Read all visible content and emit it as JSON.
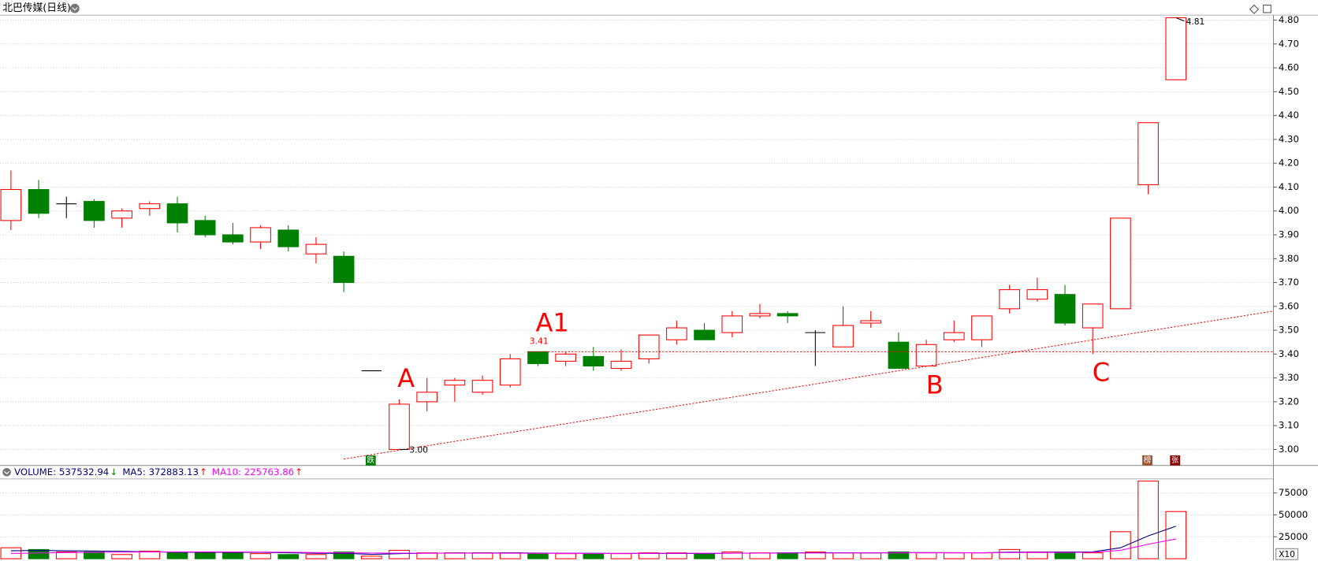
{
  "chart_data": {
    "type": "candlestick",
    "title": "北巴传媒(日线)",
    "up_color": "#ff0000",
    "down_color": "#008000",
    "flat_color": "#000000",
    "open": [
      3.96,
      4.09,
      4.03,
      4.04,
      3.97,
      4.01,
      4.03,
      3.96,
      3.9,
      3.87,
      3.92,
      3.82,
      3.81,
      3.33,
      3.0,
      3.2,
      3.27,
      3.24,
      3.27,
      3.41,
      3.37,
      3.39,
      3.34,
      3.38,
      3.46,
      3.5,
      3.49,
      3.56,
      3.57,
      3.49,
      3.43,
      3.53,
      3.45,
      3.35,
      3.46,
      3.46,
      3.59,
      3.63,
      3.65,
      3.51,
      3.59,
      4.11,
      4.55
    ],
    "high": [
      4.17,
      4.13,
      4.06,
      4.05,
      4.01,
      4.04,
      4.06,
      3.98,
      3.95,
      3.94,
      3.94,
      3.89,
      3.83,
      3.33,
      3.21,
      3.3,
      3.3,
      3.31,
      3.4,
      3.41,
      3.41,
      3.43,
      3.42,
      3.48,
      3.54,
      3.53,
      3.58,
      3.61,
      3.58,
      3.5,
      3.6,
      3.58,
      3.49,
      3.46,
      3.54,
      3.56,
      3.69,
      3.72,
      3.69,
      3.61,
      3.97,
      4.37,
      4.81
    ],
    "low": [
      3.92,
      3.97,
      3.97,
      3.93,
      3.93,
      3.98,
      3.91,
      3.89,
      3.86,
      3.84,
      3.83,
      3.78,
      3.66,
      3.33,
      3.0,
      3.16,
      3.2,
      3.23,
      3.26,
      3.35,
      3.35,
      3.33,
      3.33,
      3.36,
      3.44,
      3.46,
      3.47,
      3.55,
      3.53,
      3.35,
      3.43,
      3.51,
      3.34,
      3.35,
      3.45,
      3.43,
      3.57,
      3.62,
      3.52,
      3.4,
      3.59,
      4.07,
      4.55
    ],
    "close": [
      4.09,
      3.99,
      4.03,
      3.96,
      4.0,
      4.03,
      3.95,
      3.9,
      3.87,
      3.93,
      3.85,
      3.86,
      3.7,
      3.33,
      3.19,
      3.24,
      3.29,
      3.29,
      3.38,
      3.36,
      3.4,
      3.35,
      3.37,
      3.48,
      3.51,
      3.46,
      3.56,
      3.57,
      3.56,
      3.49,
      3.52,
      3.54,
      3.34,
      3.44,
      3.49,
      3.56,
      3.67,
      3.67,
      3.53,
      3.61,
      3.97,
      4.37,
      4.81
    ],
    "ylim": [
      2.933,
      4.821
    ],
    "yticks": [
      {
        "value": 3,
        "label": "3.00"
      },
      {
        "value": 3.1,
        "label": "3.10"
      },
      {
        "value": 3.2,
        "label": "3.20"
      },
      {
        "value": 3.3,
        "label": "3.30"
      },
      {
        "value": 3.4,
        "label": "3.40"
      },
      {
        "value": 3.5,
        "label": "3.50"
      },
      {
        "value": 3.6,
        "label": "3.60"
      },
      {
        "value": 3.7,
        "label": "3.70"
      },
      {
        "value": 3.8,
        "label": "3.80"
      },
      {
        "value": 3.9,
        "label": "3.90"
      },
      {
        "value": 4,
        "label": "4.00"
      },
      {
        "value": 4.1,
        "label": "4.10"
      },
      {
        "value": 4.2,
        "label": "4.20"
      },
      {
        "value": 4.3,
        "label": "4.30"
      },
      {
        "value": 4.4,
        "label": "4.40"
      },
      {
        "value": 4.5,
        "label": "4.50"
      },
      {
        "value": 4.6,
        "label": "4.60"
      },
      {
        "value": 4.7,
        "label": "4.70"
      },
      {
        "value": 4.8,
        "label": "4.80"
      }
    ],
    "grid": true,
    "reference_line": 3.41,
    "trendline": {
      "x": [
        12,
        45.5
      ],
      "y": [
        2.96,
        3.58
      ]
    },
    "high_marker": 4.81,
    "low_marker": {
      "value": 3,
      "label": "3.00"
    },
    "annotations": [
      "A",
      "A1",
      "B",
      "C"
    ],
    "badges": [
      "跌",
      "榜",
      "张"
    ],
    "volume": {
      "header": [
        {
          "text": "VOLUME: 537532.94",
          "arrow": "↓",
          "color": "#000080",
          "arrow_color": "#008000"
        },
        {
          "text": "MA5: 372883.13",
          "arrow": "↑",
          "color": "#000080",
          "arrow_color": "#ff0000"
        },
        {
          "text": "MA10: 225763.86",
          "arrow": "↑",
          "color": "#ff00ff",
          "arrow_color": "#ff0000"
        }
      ],
      "values": [
        12500,
        10500,
        7700,
        7700,
        4800,
        8600,
        7700,
        7700,
        7700,
        5800,
        4800,
        4800,
        7700,
        2900,
        9600,
        6700,
        6700,
        6700,
        6700,
        5800,
        5800,
        5800,
        5800,
        6700,
        6700,
        5800,
        7700,
        6700,
        6700,
        7700,
        6700,
        6700,
        7700,
        6700,
        6700,
        6700,
        10500,
        7700,
        7700,
        6700,
        30800,
        88500,
        53800
      ],
      "ma5": [
        9000,
        9500,
        9000,
        8800,
        8500,
        7800,
        7500,
        7300,
        7200,
        7300,
        6800,
        6200,
        6200,
        5000,
        5800,
        6300,
        6500,
        6500,
        6700,
        6500,
        6300,
        6200,
        6000,
        6000,
        6000,
        6000,
        6300,
        6400,
        6700,
        6800,
        6800,
        6700,
        7000,
        7000,
        6900,
        6800,
        7500,
        7500,
        7700,
        7800,
        12500,
        26000,
        37000
      ],
      "ma10": [
        6000,
        6500,
        7000,
        7300,
        7500,
        7700,
        7800,
        7800,
        7700,
        7600,
        7400,
        7000,
        6800,
        6500,
        6400,
        6300,
        6300,
        6300,
        6300,
        6200,
        6100,
        6100,
        6100,
        6200,
        6300,
        6300,
        6300,
        6400,
        6500,
        6500,
        6600,
        6600,
        6700,
        6800,
        6800,
        6800,
        7000,
        7100,
        7200,
        7300,
        9600,
        16500,
        22500
      ],
      "ma5_color": "#000080",
      "ma10_color": "#ff00ff",
      "ylim": [
        0,
        91000
      ],
      "yticks": [
        25000,
        50000,
        75000
      ],
      "scale_label": "X10"
    }
  }
}
